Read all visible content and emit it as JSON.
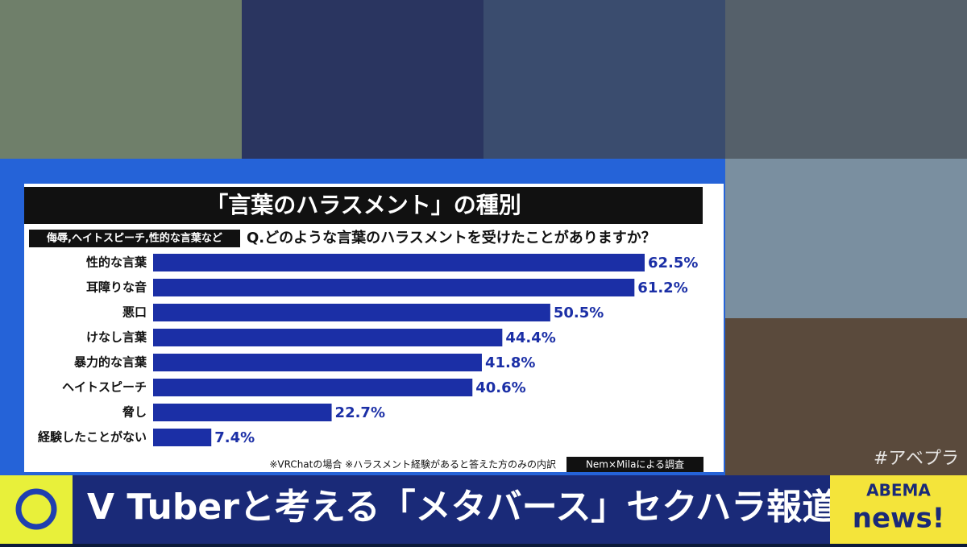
{
  "chart_data": {
    "type": "bar",
    "orientation": "horizontal",
    "title": "「言葉のハラスメント」の種別",
    "tag": "侮辱,ヘイトスピーチ,性的な言葉など",
    "question": "Q.どのような言葉のハラスメントを受けたことがありますか？",
    "categories": [
      "性的な言葉",
      "耳障りな音",
      "悪口",
      "けなし言葉",
      "暴力的な言葉",
      "ヘイトスピーチ",
      "脅し",
      "経験したことがない"
    ],
    "values": [
      62.5,
      61.2,
      50.5,
      44.4,
      41.8,
      40.6,
      22.7,
      7.4
    ],
    "value_labels": [
      "62.5%",
      "61.2%",
      "50.5%",
      "44.4%",
      "41.8%",
      "40.6%",
      "22.7%",
      "7.4%"
    ],
    "color": "#1b2fa6",
    "note": "※VRChatの場合 ※ハラスメント経験があると答えた方のみの内訳",
    "source": "Nem×Milaによる調査"
  },
  "banner": "V Tuberと考える「メタバース」セクハラ報道",
  "hashtag": "#アベプラ",
  "logo": {
    "top": "ABEMA",
    "bottom": "news!"
  }
}
